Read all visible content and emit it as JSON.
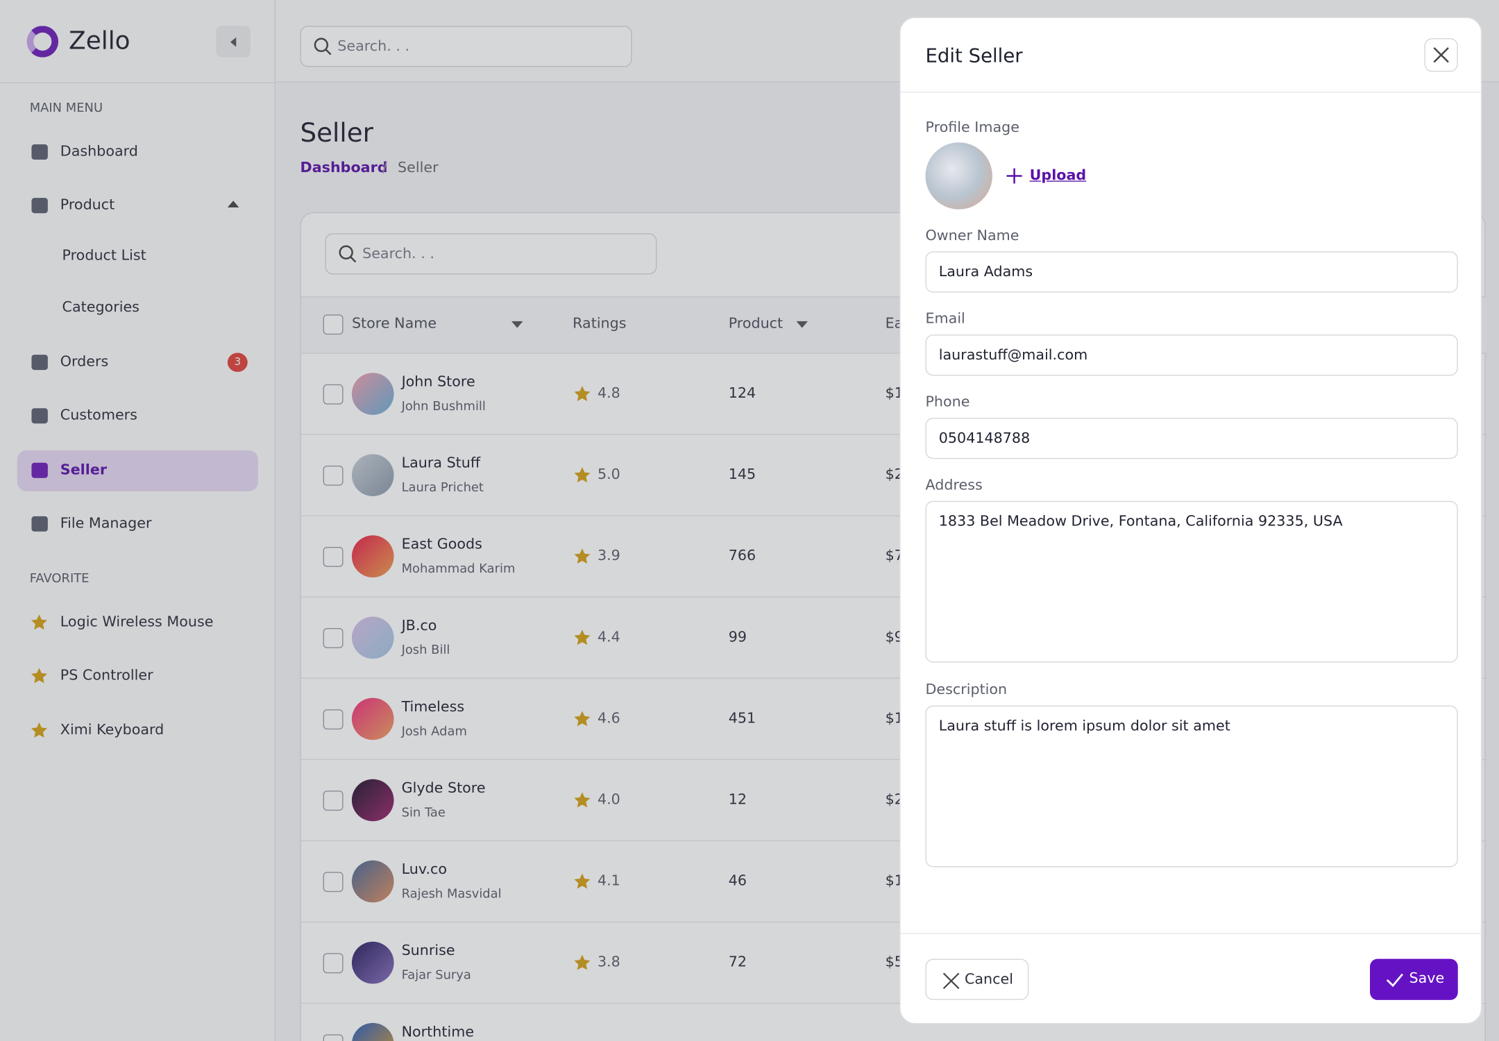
{
  "sidebar": {
    "brand": "Zello",
    "main_menu_title": "MAIN MENU",
    "menu": [
      {
        "label": "Dashboard"
      },
      {
        "label": "Product",
        "children": [
          "Product List",
          "Categories"
        ]
      },
      {
        "label": "Orders",
        "badge": "3"
      },
      {
        "label": "Customers"
      },
      {
        "label": "Seller"
      },
      {
        "label": "File Manager"
      }
    ],
    "favorite_title": "FAVORITE",
    "favorites": [
      "Logic Wireless Mouse",
      "PS Controller",
      "Ximi Keyboard"
    ]
  },
  "header": {
    "search_placeholder": "Search. . ."
  },
  "page": {
    "title": "Seller",
    "breadcrumb": [
      "Dashboard",
      "/",
      "Seller"
    ]
  },
  "table": {
    "search_placeholder": "Search. . .",
    "columns": [
      "Store Name",
      "Ratings",
      "Product",
      "Ea"
    ],
    "rows": [
      [
        "John Store",
        "John Bushmill",
        "4.8",
        "124",
        "$1"
      ],
      [
        "Laura Stuff",
        "Laura Prichet",
        "5.0",
        "145",
        "$2"
      ],
      [
        "East Goods",
        "Mohammad Karim",
        "3.9",
        "766",
        "$7"
      ],
      [
        "JB.co",
        "Josh Bill",
        "4.4",
        "99",
        "$9"
      ],
      [
        "Timeless",
        "Josh Adam",
        "4.6",
        "451",
        "$1"
      ],
      [
        "Glyde Store",
        "Sin Tae",
        "4.0",
        "12",
        "$2"
      ],
      [
        "Luv.co",
        "Rajesh Masvidal",
        "4.1",
        "46",
        "$1"
      ],
      [
        "Sunrise",
        "Fajar Surya",
        "3.8",
        "72",
        "$5"
      ],
      [
        "Northtime"
      ]
    ]
  },
  "modal": {
    "title": "Edit Seller",
    "profile_label": "Profile Image",
    "upload": "Upload",
    "fields": [
      {
        "label": "Owner Name",
        "value": "Laura Adams"
      },
      {
        "label": "Email",
        "value": "laurastuff@mail.com"
      },
      {
        "label": "Phone",
        "value": "0504148788"
      },
      {
        "label": "Address",
        "value": "1833 Bel Meadow Drive, Fontana, California 92335, USA"
      },
      {
        "label": "Description",
        "value": "Laura stuff is lorem ipsum dolor sit amet"
      }
    ],
    "cancel": "Cancel",
    "save": "Save"
  }
}
